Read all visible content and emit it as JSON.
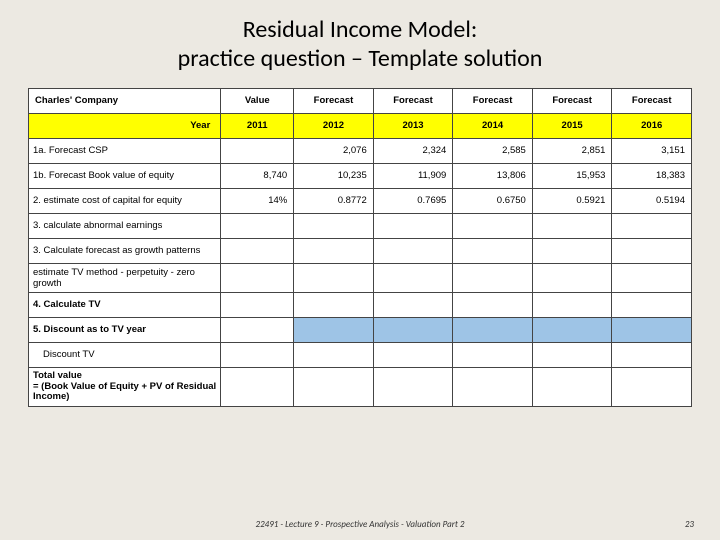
{
  "title_l1": "Residual Income Model:",
  "title_l2": "practice question – Template solution",
  "footer": "22491 - Lecture 9 - Prospective Analysis - Valuation Part 2",
  "page": "23",
  "table": {
    "background": "#ece9e2",
    "highlight_color": "#ffff00",
    "blue_fill": "#9ec4e6",
    "border_color": "#444444",
    "font_family": "Arial",
    "header_fontsize": 9.5,
    "cell_fontsize": 9.5,
    "col_widths_pct": [
      29,
      11,
      12,
      12,
      12,
      12,
      12
    ],
    "header": [
      "Charles' Company",
      "Value",
      "Forecast",
      "Forecast",
      "Forecast",
      "Forecast",
      "Forecast"
    ],
    "year_label": "Year",
    "years": [
      "2011",
      "2012",
      "2013",
      "2014",
      "2015",
      "2016"
    ],
    "rows": [
      {
        "label": "1a. Forecast CSP",
        "bold": false,
        "vals": [
          "",
          "2,076",
          "2,324",
          "2,585",
          "2,851",
          "3,151"
        ]
      },
      {
        "label": "1b. Forecast Book value of equity",
        "bold": false,
        "vals": [
          "8,740",
          "10,235",
          "11,909",
          "13,806",
          "15,953",
          "18,383"
        ]
      },
      {
        "label": "2. estimate cost of capital for equity",
        "bold": false,
        "vals": [
          "14%",
          "0.8772",
          "0.7695",
          "0.6750",
          "0.5921",
          "0.5194"
        ]
      },
      {
        "label": "3. calculate abnormal earnings",
        "bold": false,
        "vals": [
          "",
          "",
          "",
          "",
          "",
          ""
        ]
      },
      {
        "label": "3. Calculate forecast as growth patterns",
        "bold": false,
        "vals": [
          "",
          "",
          "",
          "",
          "",
          ""
        ]
      },
      {
        "label": "estimate TV method - perpetuity - zero growth",
        "bold": false,
        "vals": [
          "",
          "",
          "",
          "",
          "",
          ""
        ]
      },
      {
        "label": "4. Calculate TV",
        "bold": true,
        "vals": [
          "",
          "",
          "",
          "",
          "",
          ""
        ]
      },
      {
        "label": "5. Discount as to TV year",
        "bold": true,
        "blue": [
          false,
          true,
          true,
          true,
          true,
          true
        ],
        "vals": [
          "",
          "",
          "",
          "",
          "",
          ""
        ]
      },
      {
        "label": "Discount TV",
        "bold": false,
        "indent": true,
        "vals": [
          "",
          "",
          "",
          "",
          "",
          ""
        ]
      },
      {
        "label": "Total value\n= (Book Value of Equity + PV of Residual Income)",
        "bold": true,
        "wrap": true,
        "vals": [
          "",
          "",
          "",
          "",
          "",
          ""
        ]
      }
    ]
  }
}
